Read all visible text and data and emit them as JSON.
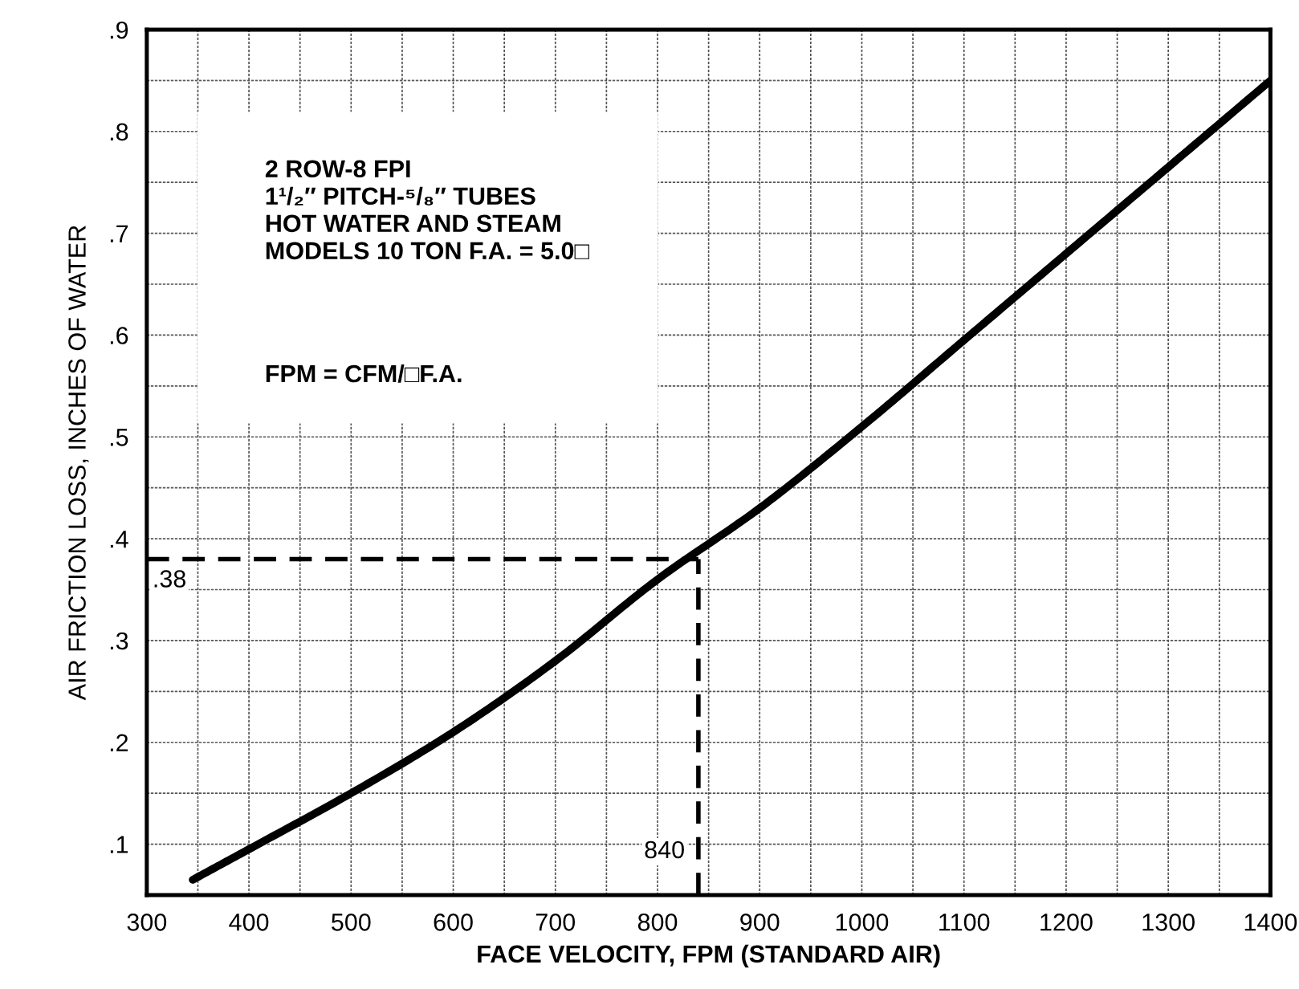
{
  "chart_data": {
    "type": "line",
    "xlabel": "FACE VELOCITY, FPM (STANDARD AIR)",
    "ylabel": "AIR FRICTION LOSS, INCHES OF WATER",
    "series": [
      {
        "color": "#000000",
        "x": [
          345,
          400,
          500,
          600,
          700,
          800,
          900,
          1000,
          1100,
          1200,
          1300,
          1400
        ],
        "values": [
          0.065,
          0.095,
          0.15,
          0.21,
          0.28,
          0.36,
          0.43,
          0.51,
          0.595,
          0.68,
          0.765,
          0.85
        ]
      }
    ],
    "xlim": [
      300,
      1400
    ],
    "xticks": [
      300,
      {
        "value": 350,
        "label": null
      },
      400,
      {
        "value": 450,
        "label": null
      },
      500,
      {
        "value": 550,
        "label": null
      },
      600,
      {
        "value": 650,
        "label": null
      },
      700,
      {
        "value": 750,
        "label": null
      },
      800,
      {
        "value": 850,
        "label": null
      },
      900,
      {
        "value": 950,
        "label": null
      },
      1000,
      {
        "value": 1050,
        "label": null
      },
      1100,
      {
        "value": 1150,
        "label": null
      },
      1200,
      {
        "value": 1250,
        "label": null
      },
      1300,
      {
        "value": 1350,
        "label": null
      },
      1400
    ],
    "ylim": [
      0.05,
      0.9
    ],
    "yticks": [
      {
        "value": 0.1,
        "label": ".1"
      },
      {
        "value": 0.15,
        "label": null
      },
      {
        "value": 0.2,
        "label": ".2"
      },
      {
        "value": 0.25,
        "label": null
      },
      {
        "value": 0.3,
        "label": ".3"
      },
      {
        "value": 0.35,
        "label": null
      },
      {
        "value": 0.4,
        "label": ".4"
      },
      {
        "value": 0.45,
        "label": null
      },
      {
        "value": 0.5,
        "label": ".5"
      },
      {
        "value": 0.55,
        "label": null
      },
      {
        "value": 0.6,
        "label": ".6"
      },
      {
        "value": 0.65,
        "label": null
      },
      {
        "value": 0.7,
        "label": ".7"
      },
      {
        "value": 0.75,
        "label": null
      },
      {
        "value": 0.8,
        "label": ".8"
      },
      {
        "value": 0.85,
        "label": null
      },
      {
        "value": 0.9,
        "label": ".9"
      }
    ],
    "grid": true,
    "ref_lines": [
      {
        "axis": "y",
        "value": 0.38,
        "label": ".38",
        "line_style": "dashed",
        "color": "#000000"
      },
      {
        "axis": "x",
        "value": 840,
        "label": "840",
        "line_style": "dashed",
        "color": "#000000"
      }
    ],
    "annotations": [
      "2 ROW-8 FPI\n1¹/₂″ PITCH-⁵/₈″ TUBES\nHOT WATER AND STEAM\nMODELS 10 TON F.A. = 5.0□",
      "FPM = CFM/□F.A."
    ]
  }
}
